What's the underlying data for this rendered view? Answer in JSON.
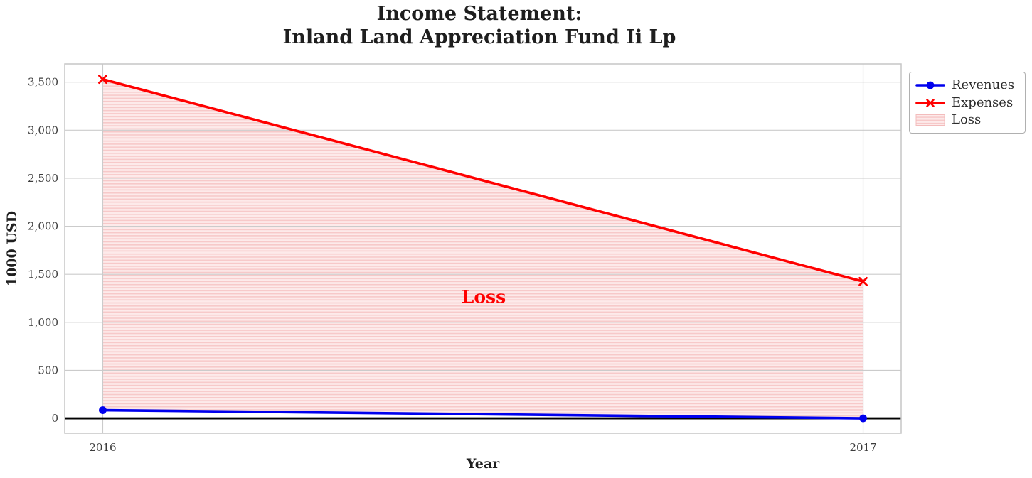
{
  "title": {
    "text": "Income Statement:\nInland Land Appreciation Fund Ii Lp"
  },
  "axis_labels": {
    "x": "Year",
    "y": "1000 USD"
  },
  "annotation": {
    "text": "Loss"
  },
  "legend": {
    "items": [
      {
        "label": "Revenues",
        "swatch": "line-circle",
        "color": "#0000ee"
      },
      {
        "label": "Expenses",
        "swatch": "line-x",
        "color": "#ff0000"
      },
      {
        "label": "Loss",
        "swatch": "hatch-rect",
        "color": "#fdeaea"
      }
    ]
  },
  "chart_data": {
    "type": "line",
    "title": "Income Statement:\nInland Land Appreciation Fund Ii Lp",
    "xlabel": "Year",
    "ylabel": "1000 USD",
    "x": [
      2016,
      2017
    ],
    "xticklabels": [
      "2016",
      "2017"
    ],
    "series": [
      {
        "name": "Revenues",
        "values": [
          85,
          0
        ],
        "color": "#0000ee",
        "marker": "circle",
        "linewidth": 3.6
      },
      {
        "name": "Expenses",
        "values": [
          3530,
          1425
        ],
        "color": "#ff0000",
        "marker": "x",
        "linewidth": 3.6
      }
    ],
    "fill_between": {
      "name": "Loss",
      "upper_series": "Expenses",
      "lower_series": "Revenues",
      "fill_color": "#fdeaea",
      "hatch_color": "#f7c9c9",
      "hatch": "horizontal-lines",
      "edge_color": "#f3bcbc"
    },
    "yticks": [
      0,
      500,
      1000,
      1500,
      2000,
      2500,
      3000,
      3500
    ],
    "ylim": [
      -155,
      3690
    ],
    "xlim": [
      2015.95,
      2017.05
    ],
    "grid": true,
    "grid_color": "#cbcbcb",
    "spine_color": "#c6c6c6",
    "zero_line": true,
    "zero_line_color": "#000000",
    "tick_label_color": "#3c3c3c",
    "legend_position": "upper right outside",
    "annotation": {
      "text": "Loss",
      "x": 2016.5,
      "y": 1270
    }
  },
  "colors": {
    "background": "#ffffff",
    "title_text": "#1e1e1e",
    "revenues": "#0000ee",
    "expenses": "#ff0000",
    "loss_fill": "#fdeaea",
    "loss_hatch": "#f7c9c9"
  }
}
